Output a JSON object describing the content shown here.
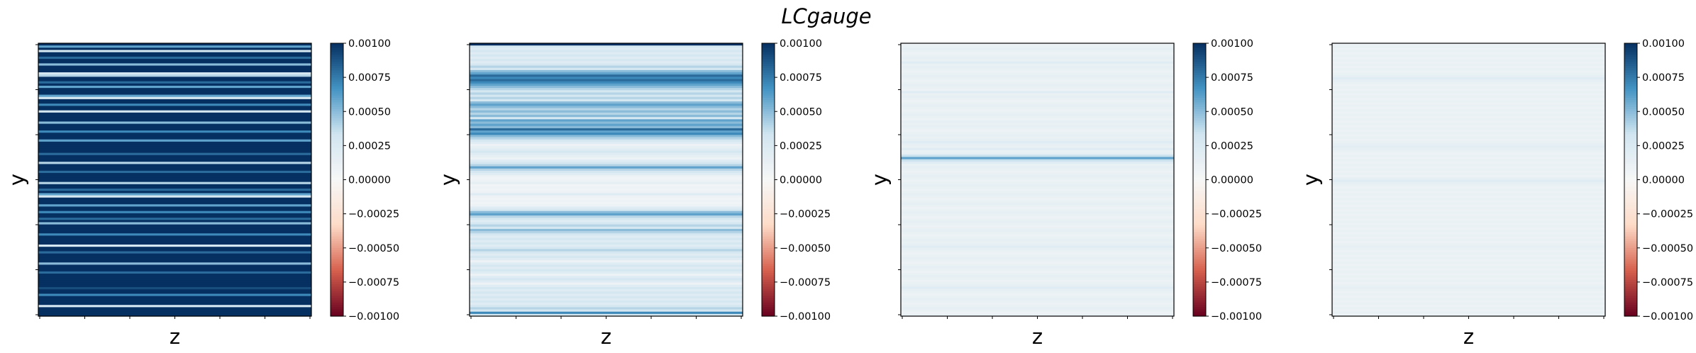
{
  "title": "LCgauge",
  "colormap": "RdBu",
  "colors": {
    "neg_max": "#67001f",
    "neg_mid": "#d6604d",
    "neg_low": "#fddbc7",
    "zero": "#f7f7f7",
    "pos_low": "#d1e5f0",
    "pos_mid": "#4393c3",
    "pos_max": "#053061"
  },
  "chart_data": [
    {
      "type": "heatmap",
      "xlabel": "z",
      "ylabel": "y",
      "clim": [
        -0.001,
        0.001
      ],
      "colorbar_ticks": [
        "0.00100",
        "0.00075",
        "0.00050",
        "0.00025",
        "0.00000",
        "−0.00025",
        "−0.00050",
        "−0.00075",
        "−0.00100"
      ],
      "grid": false,
      "row_values": [
        0.001,
        0.0006,
        0.001,
        0.0003,
        0.001,
        0.001,
        0.0008,
        0.001,
        0.001,
        0.0005,
        0.001,
        0.001,
        0.001,
        0.0003,
        0.0004,
        0.001,
        0.001,
        0.0008,
        0.001,
        0.0006,
        0.001,
        0.001,
        0.001,
        0.0006,
        0.0003,
        0.001,
        0.001,
        0.0007,
        0.001,
        0.001,
        0.0003,
        0.001,
        0.001,
        0.001,
        0.001,
        0.0005,
        0.001,
        0.001,
        0.001,
        0.0007,
        0.001,
        0.001,
        0.001,
        0.0006,
        0.001,
        0.001,
        0.001,
        0.001,
        0.001,
        0.0008,
        0.001,
        0.001,
        0.001,
        0.0004,
        0.001,
        0.001,
        0.001,
        0.0008,
        0.001,
        0.001,
        0.001,
        0.001,
        0.0004,
        0.001,
        0.001,
        0.0008,
        0.001,
        0.0006,
        0.0003,
        0.001,
        0.001,
        0.001,
        0.0006,
        0.001,
        0.001,
        0.0007,
        0.001,
        0.001,
        0.0008,
        0.001,
        0.0005,
        0.001,
        0.001,
        0.001,
        0.001,
        0.0007,
        0.001,
        0.001,
        0.001,
        0.001,
        0.0003,
        0.001,
        0.001,
        0.0008,
        0.001,
        0.001,
        0.001,
        0.001,
        0.0005,
        0.001,
        0.001,
        0.001,
        0.0008,
        0.001,
        0.001,
        0.001,
        0.001,
        0.001,
        0.001,
        0.0009,
        0.001,
        0.001,
        0.0007,
        0.001,
        0.001,
        0.001,
        0.001,
        0.0003,
        0.001,
        0.001,
        0.001,
        0.001
      ]
    },
    {
      "type": "heatmap",
      "xlabel": "z",
      "ylabel": "y",
      "clim": [
        -0.001,
        0.001
      ],
      "colorbar_ticks": [
        "0.00100",
        "0.00075",
        "0.00050",
        "0.00025",
        "0.00000",
        "−0.00025",
        "−0.00050",
        "−0.00075",
        "−0.00100"
      ],
      "grid": false,
      "row_values": [
        0.001,
        0.0003,
        0.0002,
        0.0003,
        0.0002,
        0.0003,
        0.0002,
        0.0003,
        0.0002,
        0.0003,
        0.0004,
        0.0003,
        0.0005,
        0.0006,
        0.0008,
        0.0007,
        0.0008,
        0.0007,
        0.0006,
        0.0005,
        0.0004,
        0.0003,
        0.0004,
        0.0003,
        0.0004,
        0.0003,
        0.0005,
        0.0006,
        0.0005,
        0.0004,
        0.0005,
        0.0004,
        0.0005,
        0.0003,
        0.0006,
        0.0005,
        0.0006,
        0.0005,
        0.0008,
        0.0006,
        0.0007,
        0.0005,
        0.0004,
        0.0003,
        0.0002,
        0.0001,
        0.00015,
        0.0002,
        0.0003,
        0.0002,
        0.00015,
        0.0001,
        0.0002,
        0.0003,
        0.0004,
        0.0006,
        0.0004,
        0.0003,
        0.0002,
        0.0001,
        5e-05,
        0.0001,
        0.00015,
        5e-05,
        0.0001,
        5e-05,
        0.0001,
        0.0002,
        0.0001,
        5e-05,
        0.0001,
        5e-05,
        0.0001,
        0.0002,
        0.0003,
        0.0005,
        0.0006,
        0.0004,
        0.0003,
        0.0002,
        0.0003,
        0.0004,
        0.0003,
        0.0005,
        0.0004,
        0.0003,
        0.0002,
        0.0003,
        0.0002,
        0.0003,
        0.0002,
        0.0003,
        0.0004,
        0.0003,
        0.0002,
        0.0003,
        0.0002,
        0.0001,
        0.0002,
        0.0003,
        0.0002,
        0.0003,
        0.0002,
        0.0001,
        0.0002,
        0.0003,
        0.0002,
        0.0001,
        0.0002,
        0.0003,
        0.0002,
        0.0003,
        0.0002,
        0.0003,
        0.0002,
        0.0003,
        0.0002,
        0.0003,
        0.0004,
        0.0003,
        0.0007,
        0.0003
      ]
    },
    {
      "type": "heatmap",
      "xlabel": "z",
      "ylabel": "y",
      "clim": [
        -0.001,
        0.001
      ],
      "colorbar_ticks": [
        "0.00100",
        "0.00075",
        "0.00050",
        "0.00025",
        "0.00000",
        "−0.00025",
        "−0.00050",
        "−0.00075",
        "−0.00100"
      ],
      "grid": false,
      "row_values": [
        0.0001,
        0.00012,
        0.00015,
        0.00012,
        0.0001,
        0.00012,
        0.00015,
        0.00012,
        0.0002,
        0.00012,
        0.00015,
        0.00012,
        0.0001,
        0.00012,
        0.00015,
        0.00012,
        0.0001,
        0.00012,
        0.00015,
        0.00012,
        0.0001,
        0.0002,
        0.00012,
        0.00015,
        0.00012,
        0.0001,
        0.00012,
        0.00015,
        0.00012,
        0.0001,
        0.00012,
        0.00015,
        0.00012,
        0.0001,
        0.00015,
        0.00012,
        0.00015,
        0.00012,
        0.0001,
        0.00012,
        0.00015,
        0.00012,
        0.00015,
        0.0002,
        0.00015,
        0.00012,
        0.0002,
        0.00012,
        0.00015,
        0.00035,
        0.0006,
        0.00035,
        0.0002,
        0.00012,
        0.00015,
        0.00012,
        0.0001,
        0.00012,
        0.00015,
        0.00012,
        0.0001,
        0.00012,
        0.00015,
        0.00012,
        0.0001,
        0.00012,
        0.00015,
        0.00012,
        0.0001,
        0.00012,
        0.00015,
        0.00012,
        0.0001,
        0.00012,
        0.00015,
        0.00012,
        0.0001,
        0.00012,
        0.00015,
        0.00012,
        0.0001,
        0.00012,
        0.00015,
        0.00012,
        0.0001,
        0.00012,
        0.00015,
        0.00012,
        0.00015,
        0.0002,
        0.00015,
        0.00012,
        0.0001,
        0.00012,
        0.00015,
        0.00012,
        0.0001,
        0.00012,
        0.00015,
        0.00012,
        0.0001,
        0.00012,
        0.00015,
        0.00012,
        0.0001,
        0.00012,
        0.00015,
        0.0002,
        0.00015,
        0.00012,
        0.0001,
        0.00012,
        0.00015,
        0.00012,
        0.0001,
        0.00012,
        0.00015,
        0.00012,
        0.0001,
        0.00012
      ]
    },
    {
      "type": "heatmap",
      "xlabel": "z",
      "ylabel": "y",
      "clim": [
        -0.001,
        0.001
      ],
      "colorbar_ticks": [
        "0.00100",
        "0.00075",
        "0.00050",
        "0.00025",
        "0.00000",
        "−0.00025",
        "−0.00050",
        "−0.00075",
        "−0.00100"
      ],
      "grid": false,
      "row_values": [
        0.0001,
        0.00012,
        0.0001,
        0.00012,
        0.0001,
        0.00012,
        0.0001,
        0.00012,
        0.0001,
        0.00012,
        0.0001,
        0.00012,
        0.0001,
        0.00012,
        0.00015,
        0.0002,
        0.00015,
        0.00012,
        0.0001,
        0.00012,
        0.0001,
        0.00012,
        0.0001,
        0.00012,
        0.0001,
        0.00012,
        0.0001,
        0.00012,
        0.0001,
        0.00012,
        0.0001,
        0.00012,
        0.0001,
        0.00012,
        0.0001,
        0.00012,
        0.0001,
        0.00012,
        0.0001,
        0.00012,
        0.0001,
        0.00012,
        0.0001,
        0.00012,
        0.00015,
        0.00018,
        0.00015,
        0.00012,
        0.0001,
        0.00012,
        0.0001,
        0.00012,
        0.0001,
        0.00012,
        0.0001,
        0.00012,
        0.0001,
        0.00012,
        0.0001,
        0.00015,
        0.0002,
        0.00015,
        0.00012,
        0.0001,
        0.00012,
        0.0001,
        0.00012,
        0.0001,
        0.00012,
        0.0001,
        0.00012,
        0.0001,
        0.00012,
        0.0001,
        0.00012,
        0.0001,
        0.00012,
        0.0001,
        0.00012,
        0.0001,
        0.00012,
        0.0001,
        0.00012,
        0.0001,
        0.00012,
        0.0001,
        0.00012,
        0.0001,
        0.00012,
        0.00015,
        0.00012,
        0.0001,
        0.00012,
        0.0001,
        0.00012,
        0.0001,
        0.00012,
        0.0001,
        0.00012,
        0.0001,
        0.00012,
        0.0001,
        0.00012,
        0.0001,
        0.00012,
        0.0001,
        0.00012,
        0.00015,
        0.00012,
        0.0001,
        0.00012,
        0.0001,
        0.00012,
        0.0001,
        0.00012,
        0.0001,
        0.00012,
        0.0001,
        0.00012,
        0.0001
      ]
    }
  ]
}
